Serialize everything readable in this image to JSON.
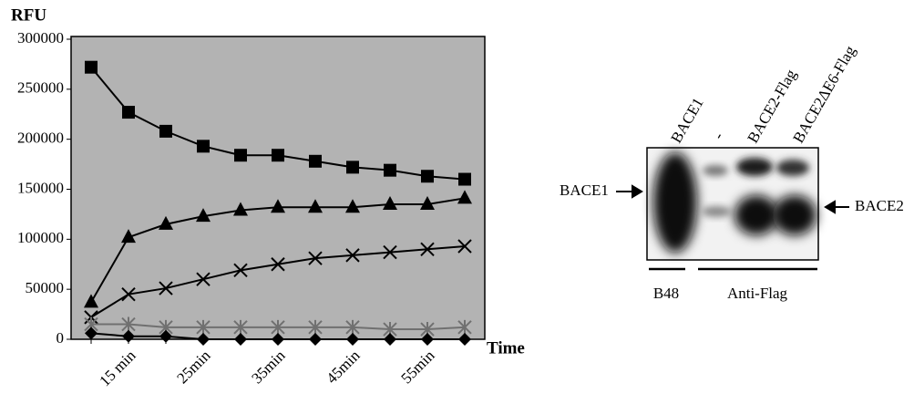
{
  "chart_data": {
    "type": "line",
    "y_label": "RFU",
    "x_label": "Time",
    "categories": [
      null,
      "15 min",
      null,
      "25min",
      null,
      "35min",
      null,
      "45min",
      null,
      "55min",
      null
    ],
    "ylim": [
      0,
      300000
    ],
    "yticks": [
      0,
      50000,
      100000,
      150000,
      200000,
      250000,
      300000
    ],
    "plot_background": "#b3b3b3",
    "series": [
      {
        "color": "#000000",
        "marker": "square",
        "values": [
          272000,
          227000,
          208000,
          193000,
          184000,
          184000,
          178000,
          172000,
          169000,
          163000,
          160000
        ]
      },
      {
        "color": "#000000",
        "marker": "triangle",
        "values": [
          37000,
          102000,
          115000,
          123000,
          129000,
          132000,
          132000,
          132000,
          135000,
          135000,
          141000
        ]
      },
      {
        "color": "#000000",
        "marker": "x",
        "values": [
          22000,
          45000,
          51000,
          60000,
          69000,
          75000,
          81000,
          84000,
          87000,
          90000,
          93000
        ]
      },
      {
        "color": "#707070",
        "marker": "star",
        "values": [
          15000,
          15000,
          12000,
          12000,
          12000,
          12000,
          12000,
          12000,
          10000,
          10000,
          12000
        ]
      },
      {
        "color": "#000000",
        "marker": "diamond",
        "values": [
          6000,
          3000,
          3000,
          0,
          0,
          0,
          0,
          0,
          0,
          0,
          0
        ]
      }
    ]
  },
  "blot": {
    "lanes": [
      "BACE1",
      "-",
      "BACE2-Flag",
      "BACE2ΔE6-Flag"
    ],
    "left_marker": "BACE1",
    "right_marker": "BACE2",
    "groups": [
      "B48",
      "Anti-Flag"
    ]
  }
}
